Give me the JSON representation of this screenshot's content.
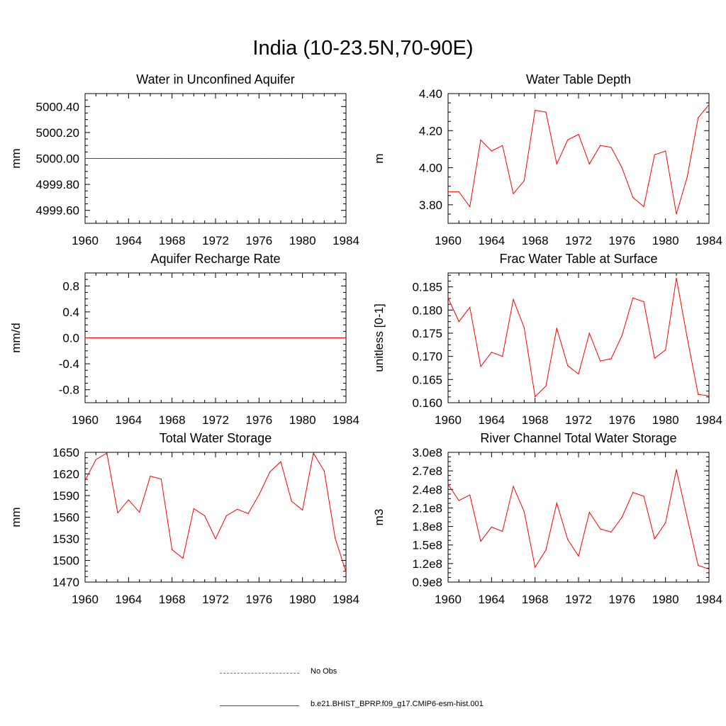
{
  "page": {
    "title": "India (10-23.5N,70-90E)"
  },
  "legend": {
    "items": [
      {
        "label": "No Obs",
        "color": "#6b6bd8",
        "style": "dashed"
      },
      {
        "label": "b.e21.BHIST_BPRP.f09_g17.CMIP6-esm-hist.001",
        "color": "#ff0000",
        "style": "solid"
      }
    ]
  },
  "chart_data": [
    {
      "type": "line",
      "title": "Water in Unconfined Aquifer",
      "ylabel": "mm",
      "xlim": [
        1960,
        1984
      ],
      "ylim": [
        4999.5,
        5000.5
      ],
      "xticks": [
        1960,
        1964,
        1968,
        1972,
        1976,
        1980,
        1984
      ],
      "yticks": [
        4999.6,
        4999.8,
        5000.0,
        5000.2,
        5000.4
      ],
      "ytick_labels": [
        "4999.60",
        "4999.80",
        "5000.00",
        "5000.20",
        "5000.40"
      ],
      "series": [
        {
          "color": "#ff0000",
          "x": [
            1960,
            1961,
            1962,
            1963,
            1964,
            1965,
            1966,
            1967,
            1968,
            1969,
            1970,
            1971,
            1972,
            1973,
            1974,
            1975,
            1976,
            1977,
            1978,
            1979,
            1980,
            1981,
            1982,
            1983,
            1984
          ],
          "values": [
            5000,
            5000,
            5000,
            5000,
            5000,
            5000,
            5000,
            5000,
            5000,
            5000,
            5000,
            5000,
            5000,
            5000,
            5000,
            5000,
            5000,
            5000,
            5000,
            5000,
            5000,
            5000,
            5000,
            5000,
            5000
          ]
        }
      ]
    },
    {
      "type": "line",
      "title": "Water Table Depth",
      "ylabel": "m",
      "xlim": [
        1960,
        1984
      ],
      "ylim": [
        3.7,
        4.4
      ],
      "xticks": [
        1960,
        1964,
        1968,
        1972,
        1976,
        1980,
        1984
      ],
      "yticks": [
        3.8,
        4.0,
        4.2,
        4.4
      ],
      "ytick_labels": [
        "3.80",
        "4.00",
        "4.20",
        "4.40"
      ],
      "series": [
        {
          "color": "#ff0000",
          "x": [
            1960,
            1961,
            1962,
            1963,
            1964,
            1965,
            1966,
            1967,
            1968,
            1969,
            1970,
            1971,
            1972,
            1973,
            1974,
            1975,
            1976,
            1977,
            1978,
            1979,
            1980,
            1981,
            1982,
            1983,
            1984
          ],
          "values": [
            3.87,
            3.87,
            3.79,
            4.15,
            4.09,
            4.12,
            3.86,
            3.93,
            4.31,
            4.3,
            4.02,
            4.15,
            4.18,
            4.02,
            4.12,
            4.11,
            4.0,
            3.84,
            3.79,
            4.07,
            4.09,
            3.75,
            3.95,
            4.27,
            4.34
          ]
        }
      ]
    },
    {
      "type": "line",
      "title": "Aquifer Recharge Rate",
      "ylabel": "mm/d",
      "xlim": [
        1960,
        1984
      ],
      "ylim": [
        -1.0,
        1.0
      ],
      "xticks": [
        1960,
        1964,
        1968,
        1972,
        1976,
        1980,
        1984
      ],
      "yticks": [
        -0.8,
        -0.4,
        0.0,
        0.4,
        0.8
      ],
      "ytick_labels": [
        "-0.8",
        "-0.4",
        "0.0",
        "0.4",
        "0.8"
      ],
      "series": [
        {
          "color": "#ff0000",
          "x": [
            1960,
            1961,
            1962,
            1963,
            1964,
            1965,
            1966,
            1967,
            1968,
            1969,
            1970,
            1971,
            1972,
            1973,
            1974,
            1975,
            1976,
            1977,
            1978,
            1979,
            1980,
            1981,
            1982,
            1983,
            1984
          ],
          "values": [
            0,
            0,
            0,
            0,
            0,
            0,
            0,
            0,
            0,
            0,
            0,
            0,
            0,
            0,
            0,
            0,
            0,
            0,
            0,
            0,
            0,
            0,
            0,
            0,
            0
          ]
        }
      ]
    },
    {
      "type": "line",
      "title": "Frac Water Table at Surface",
      "ylabel": "unitless [0-1]",
      "xlim": [
        1960,
        1984
      ],
      "ylim": [
        0.16,
        0.188
      ],
      "xticks": [
        1960,
        1964,
        1968,
        1972,
        1976,
        1980,
        1984
      ],
      "yticks": [
        0.16,
        0.165,
        0.17,
        0.175,
        0.18,
        0.185
      ],
      "ytick_labels": [
        "0.160",
        "0.165",
        "0.170",
        "0.175",
        "0.180",
        "0.185"
      ],
      "series": [
        {
          "color": "#ff0000",
          "x": [
            1960,
            1961,
            1962,
            1963,
            1964,
            1965,
            1966,
            1967,
            1968,
            1969,
            1970,
            1971,
            1972,
            1973,
            1974,
            1975,
            1976,
            1977,
            1978,
            1979,
            1980,
            1981,
            1982,
            1983,
            1984
          ],
          "values": [
            0.1826,
            0.1775,
            0.1806,
            0.1678,
            0.1709,
            0.17,
            0.1823,
            0.1762,
            0.1613,
            0.1636,
            0.1761,
            0.168,
            0.1662,
            0.175,
            0.169,
            0.1695,
            0.1745,
            0.1826,
            0.1818,
            0.1696,
            0.1714,
            0.1869,
            0.174,
            0.1618,
            0.1615
          ]
        }
      ]
    },
    {
      "type": "line",
      "title": "Total Water Storage",
      "ylabel": "mm",
      "xlim": [
        1960,
        1984
      ],
      "ylim": [
        1470,
        1650
      ],
      "xticks": [
        1960,
        1964,
        1968,
        1972,
        1976,
        1980,
        1984
      ],
      "yticks": [
        1470,
        1500,
        1530,
        1560,
        1590,
        1620,
        1650
      ],
      "ytick_labels": [
        "1470",
        "1500",
        "1530",
        "1560",
        "1590",
        "1620",
        "1650"
      ],
      "series": [
        {
          "color": "#ff0000",
          "x": [
            1960,
            1961,
            1962,
            1963,
            1964,
            1965,
            1966,
            1967,
            1968,
            1969,
            1970,
            1971,
            1972,
            1973,
            1974,
            1975,
            1976,
            1977,
            1978,
            1979,
            1980,
            1981,
            1982,
            1983,
            1984
          ],
          "values": [
            1611,
            1640,
            1649,
            1566,
            1584,
            1567,
            1617,
            1613,
            1515,
            1503,
            1572,
            1562,
            1530,
            1562,
            1571,
            1565,
            1591,
            1623,
            1637,
            1582,
            1570,
            1649,
            1624,
            1531,
            1484
          ]
        }
      ]
    },
    {
      "type": "line",
      "title": "River Channel Total Water Storage",
      "ylabel": "m3",
      "xlim": [
        1960,
        1984
      ],
      "ylim": [
        90000000.0,
        300000000.0
      ],
      "xticks": [
        1960,
        1964,
        1968,
        1972,
        1976,
        1980,
        1984
      ],
      "yticks": [
        90000000.0,
        120000000.0,
        150000000.0,
        180000000.0,
        210000000.0,
        240000000.0,
        270000000.0,
        300000000.0
      ],
      "ytick_labels": [
        "0.9e8",
        "1.2e8",
        "1.5e8",
        "1.8e8",
        "2.1e8",
        "2.4e8",
        "2.7e8",
        "3.0e8"
      ],
      "series": [
        {
          "color": "#ff0000",
          "x": [
            1960,
            1961,
            1962,
            1963,
            1964,
            1965,
            1966,
            1967,
            1968,
            1969,
            1970,
            1971,
            1972,
            1973,
            1974,
            1975,
            1976,
            1977,
            1978,
            1979,
            1980,
            1981,
            1982,
            1983,
            1984
          ],
          "values": [
            248000000.0,
            222000000.0,
            231000000.0,
            156000000.0,
            179000000.0,
            172000000.0,
            245000000.0,
            204000000.0,
            114000000.0,
            142000000.0,
            218000000.0,
            159000000.0,
            132000000.0,
            203000000.0,
            176000000.0,
            171000000.0,
            195000000.0,
            235000000.0,
            229000000.0,
            160000000.0,
            186000000.0,
            272000000.0,
            194000000.0,
            117000000.0,
            111000000.0
          ]
        }
      ]
    }
  ]
}
